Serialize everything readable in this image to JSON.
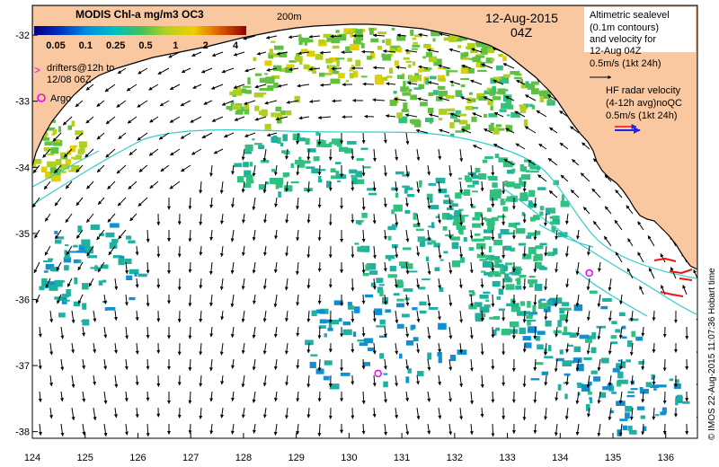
{
  "map": {
    "title": "MODIS Chl-a mg/m3 OC3",
    "date": "12-Aug-2015",
    "time": "04Z",
    "isobath_label": "200m",
    "colorbar_ticks": [
      "0.05",
      "0.1",
      "0.25",
      "0.5",
      "1",
      "2",
      "4"
    ],
    "legend": {
      "drifters": "drifters@12h to",
      "drifters_date": "12/08 06Z",
      "argo": "Argo",
      "altimetry_lines": [
        "Altimetric sealevel",
        "(0.1m contours)",
        "and velocity for",
        "12-Aug 04Z",
        "0.5m/s (1kt 24h)"
      ],
      "hf_lines": [
        "HF radar velocity",
        "(4-12h avg)noQC",
        "0.5m/s (1kt 24h)"
      ]
    },
    "x_ticks": [
      "124",
      "125",
      "126",
      "127",
      "128",
      "129",
      "130",
      "131",
      "132",
      "133",
      "134",
      "135",
      "136"
    ],
    "y_ticks": [
      "-32",
      "-33",
      "-34",
      "-35",
      "-36",
      "-37",
      "-38"
    ],
    "credit": "© IMOS 22-Aug-2015 11:07:36 Hobart time",
    "colors": {
      "land": "#f9c8a0",
      "ocean": "#ffffff",
      "contour": "#33cccc",
      "argo": "#ee00ee",
      "drifter": "#ee00ee",
      "hf": "#2222ee",
      "hf_red": "#ee1111",
      "chl": [
        "#1010a0",
        "#1040d0",
        "#1090d0",
        "#20b0a0",
        "#30c080",
        "#60c040",
        "#b0d020",
        "#e0d000",
        "#e08000",
        "#d02000",
        "#800000"
      ]
    },
    "geo": {
      "lon_min": 124,
      "lon_max": 136.6,
      "lat_max": -31.55,
      "lat_min": -38.1
    },
    "argo_floats": [
      {
        "lon": 134.55,
        "lat": -35.6
      },
      {
        "lon": 130.55,
        "lat": -37.12
      }
    ]
  }
}
